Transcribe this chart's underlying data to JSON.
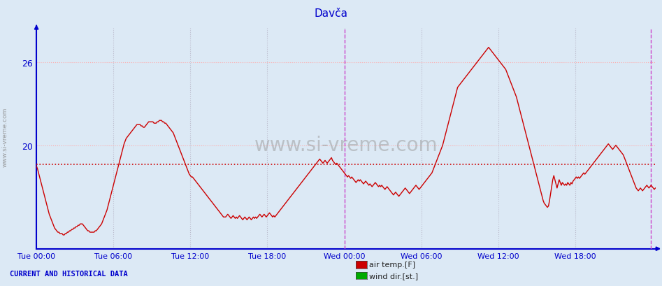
{
  "title": "Davča",
  "title_color": "#0000cc",
  "bg_color": "#dce9f5",
  "plot_bg_color": "#dce9f5",
  "line_color": "#cc0000",
  "line_width": 1.0,
  "y_label_color": "#0000cc",
  "x_label_color": "#0000cc",
  "axis_color": "#0000cc",
  "grid_color_h": "#ffaaaa",
  "grid_color_v": "#bbbbcc",
  "avg_line_color": "#cc0000",
  "avg_line_style": "dotted",
  "avg_value": 18.6,
  "ylim": [
    12.5,
    28.5
  ],
  "yticks": [
    20,
    26
  ],
  "x_ticks_labels": [
    "Tue 00:00",
    "Tue 06:00",
    "Tue 12:00",
    "Tue 18:00",
    "Wed 00:00",
    "Wed 06:00",
    "Wed 12:00",
    "Wed 18:00"
  ],
  "x_ticks_pos": [
    0,
    72,
    144,
    216,
    288,
    360,
    432,
    504
  ],
  "total_points": 576,
  "vline_positions": [
    288,
    575
  ],
  "vline_color": "#cc44cc",
  "watermark_text": "www.si-vreme.com",
  "footer_text": "CURRENT AND HISTORICAL DATA",
  "footer_color": "#0000cc",
  "legend_items": [
    "air temp.[F]",
    "wind dir.[st.]"
  ],
  "legend_colors": [
    "#cc0000",
    "#00aa00"
  ],
  "temperature_data": [
    18.5,
    18.3,
    18.0,
    17.7,
    17.4,
    17.1,
    16.8,
    16.5,
    16.2,
    15.9,
    15.6,
    15.3,
    15.0,
    14.8,
    14.6,
    14.4,
    14.2,
    14.0,
    13.9,
    13.8,
    13.7,
    13.7,
    13.6,
    13.6,
    13.6,
    13.5,
    13.5,
    13.6,
    13.6,
    13.7,
    13.7,
    13.8,
    13.8,
    13.9,
    13.9,
    14.0,
    14.0,
    14.1,
    14.1,
    14.2,
    14.2,
    14.3,
    14.3,
    14.3,
    14.2,
    14.1,
    14.0,
    13.9,
    13.8,
    13.8,
    13.7,
    13.7,
    13.7,
    13.7,
    13.7,
    13.8,
    13.8,
    13.9,
    14.0,
    14.1,
    14.2,
    14.3,
    14.5,
    14.7,
    14.9,
    15.1,
    15.3,
    15.6,
    15.9,
    16.2,
    16.5,
    16.8,
    17.1,
    17.4,
    17.7,
    18.0,
    18.3,
    18.6,
    18.9,
    19.2,
    19.5,
    19.8,
    20.1,
    20.3,
    20.5,
    20.6,
    20.7,
    20.8,
    20.9,
    21.0,
    21.1,
    21.2,
    21.3,
    21.4,
    21.5,
    21.5,
    21.5,
    21.5,
    21.4,
    21.4,
    21.3,
    21.3,
    21.4,
    21.5,
    21.6,
    21.7,
    21.7,
    21.7,
    21.7,
    21.7,
    21.6,
    21.6,
    21.6,
    21.7,
    21.7,
    21.8,
    21.8,
    21.8,
    21.7,
    21.7,
    21.6,
    21.6,
    21.5,
    21.4,
    21.3,
    21.2,
    21.1,
    21.0,
    20.9,
    20.7,
    20.5,
    20.3,
    20.1,
    19.9,
    19.7,
    19.5,
    19.3,
    19.1,
    18.9,
    18.7,
    18.5,
    18.3,
    18.1,
    17.9,
    17.8,
    17.7,
    17.7,
    17.6,
    17.5,
    17.4,
    17.3,
    17.2,
    17.1,
    17.0,
    16.9,
    16.8,
    16.7,
    16.6,
    16.5,
    16.4,
    16.3,
    16.2,
    16.1,
    16.0,
    15.9,
    15.8,
    15.7,
    15.6,
    15.5,
    15.4,
    15.3,
    15.2,
    15.1,
    15.0,
    14.9,
    14.8,
    14.8,
    14.8,
    14.9,
    15.0,
    14.9,
    14.8,
    14.7,
    14.8,
    14.9,
    14.8,
    14.7,
    14.8,
    14.7,
    14.8,
    14.9,
    14.8,
    14.7,
    14.6,
    14.7,
    14.8,
    14.7,
    14.6,
    14.7,
    14.8,
    14.7,
    14.6,
    14.7,
    14.8,
    14.7,
    14.8,
    14.7,
    14.8,
    14.9,
    15.0,
    14.9,
    14.8,
    14.9,
    15.0,
    14.9,
    14.8,
    14.9,
    15.0,
    15.1,
    15.0,
    14.9,
    14.8,
    14.9,
    14.8,
    14.9,
    15.0,
    15.1,
    15.2,
    15.3,
    15.4,
    15.5,
    15.6,
    15.7,
    15.8,
    15.9,
    16.0,
    16.1,
    16.2,
    16.3,
    16.4,
    16.5,
    16.6,
    16.7,
    16.8,
    16.9,
    17.0,
    17.1,
    17.2,
    17.3,
    17.4,
    17.5,
    17.6,
    17.7,
    17.8,
    17.9,
    18.0,
    18.1,
    18.2,
    18.3,
    18.4,
    18.5,
    18.6,
    18.7,
    18.8,
    18.9,
    19.0,
    18.9,
    18.8,
    18.7,
    18.8,
    18.9,
    18.8,
    18.7,
    18.8,
    18.9,
    19.0,
    19.1,
    18.9,
    18.8,
    18.7,
    18.6,
    18.7,
    18.6,
    18.5,
    18.4,
    18.3,
    18.2,
    18.1,
    18.0,
    17.9,
    17.8,
    17.7,
    17.8,
    17.7,
    17.6,
    17.7,
    17.6,
    17.5,
    17.4,
    17.3,
    17.4,
    17.5,
    17.4,
    17.5,
    17.4,
    17.3,
    17.2,
    17.3,
    17.4,
    17.3,
    17.2,
    17.1,
    17.2,
    17.1,
    17.0,
    17.1,
    17.2,
    17.3,
    17.2,
    17.1,
    17.0,
    17.1,
    17.0,
    17.1,
    17.0,
    16.9,
    16.8,
    16.9,
    17.0,
    16.9,
    16.8,
    16.7,
    16.6,
    16.5,
    16.4,
    16.5,
    16.6,
    16.5,
    16.4,
    16.3,
    16.4,
    16.5,
    16.6,
    16.7,
    16.8,
    16.9,
    16.8,
    16.7,
    16.6,
    16.5,
    16.6,
    16.7,
    16.8,
    16.9,
    17.0,
    17.1,
    17.0,
    16.9,
    16.8,
    16.9,
    17.0,
    17.1,
    17.2,
    17.3,
    17.4,
    17.5,
    17.6,
    17.7,
    17.8,
    17.9,
    18.0,
    18.2,
    18.4,
    18.6,
    18.8,
    19.0,
    19.2,
    19.4,
    19.6,
    19.8,
    20.0,
    20.3,
    20.6,
    20.9,
    21.2,
    21.5,
    21.8,
    22.1,
    22.4,
    22.7,
    23.0,
    23.3,
    23.6,
    23.9,
    24.2,
    24.3,
    24.4,
    24.5,
    24.6,
    24.7,
    24.8,
    24.9,
    25.0,
    25.1,
    25.2,
    25.3,
    25.4,
    25.5,
    25.6,
    25.7,
    25.8,
    25.9,
    26.0,
    26.1,
    26.2,
    26.3,
    26.4,
    26.5,
    26.6,
    26.7,
    26.8,
    26.9,
    27.0,
    27.1,
    27.0,
    26.9,
    26.8,
    26.7,
    26.6,
    26.5,
    26.4,
    26.3,
    26.2,
    26.1,
    26.0,
    25.9,
    25.8,
    25.7,
    25.6,
    25.5,
    25.3,
    25.1,
    24.9,
    24.7,
    24.5,
    24.3,
    24.1,
    23.9,
    23.7,
    23.5,
    23.2,
    22.9,
    22.6,
    22.3,
    22.0,
    21.7,
    21.4,
    21.1,
    20.8,
    20.5,
    20.2,
    19.9,
    19.6,
    19.3,
    19.0,
    18.7,
    18.4,
    18.1,
    17.8,
    17.5,
    17.2,
    16.9,
    16.6,
    16.3,
    16.0,
    15.8,
    15.7,
    15.6,
    15.5,
    15.6,
    16.0,
    16.5,
    17.0,
    17.5,
    17.8,
    17.5,
    17.2,
    16.9,
    17.2,
    17.5,
    17.3,
    17.1,
    17.3,
    17.2,
    17.1,
    17.2,
    17.1,
    17.3,
    17.2,
    17.1,
    17.3,
    17.2,
    17.4,
    17.5,
    17.6,
    17.7,
    17.6,
    17.7,
    17.6,
    17.7,
    17.8,
    17.9,
    18.0,
    17.9,
    18.0,
    18.1,
    18.2,
    18.3,
    18.4,
    18.5,
    18.6,
    18.7,
    18.8,
    18.9,
    19.0,
    19.1,
    19.2,
    19.3,
    19.4,
    19.5,
    19.6,
    19.7,
    19.8,
    19.9,
    20.0,
    20.1,
    20.0,
    19.9,
    19.8,
    19.7,
    19.8,
    19.9,
    20.0,
    19.9,
    19.8,
    19.7,
    19.6,
    19.5,
    19.4,
    19.3,
    19.1,
    18.9,
    18.7,
    18.5,
    18.3,
    18.1,
    17.9,
    17.7,
    17.5,
    17.3,
    17.1,
    16.9,
    16.8,
    16.7,
    16.8,
    16.9,
    16.8,
    16.7,
    16.8,
    16.9,
    17.0,
    17.1,
    17.0,
    16.9,
    17.0,
    17.1,
    17.0,
    16.9,
    16.8,
    16.9
  ]
}
